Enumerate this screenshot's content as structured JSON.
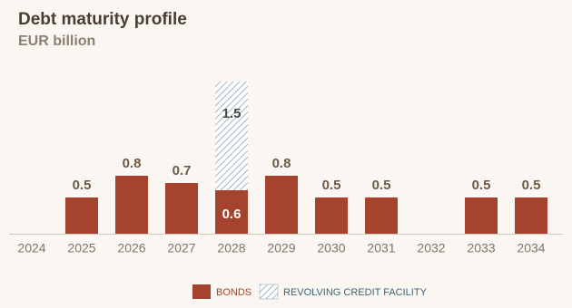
{
  "chart_data": {
    "type": "bar",
    "stacked": true,
    "title": "Debt maturity profile",
    "subtitle": "EUR billion",
    "categories": [
      "2024",
      "2025",
      "2026",
      "2027",
      "2028",
      "2029",
      "2030",
      "2031",
      "2032",
      "2033",
      "2034"
    ],
    "series": [
      {
        "name": "BONDS",
        "color": "#a5432f",
        "values": [
          null,
          0.5,
          0.8,
          0.7,
          0.6,
          0.8,
          0.5,
          0.5,
          null,
          0.5,
          0.5
        ]
      },
      {
        "name": "REVOLVING CREDIT FACILITY",
        "color": "#8aa5ae",
        "pattern": "hatch",
        "values": [
          null,
          null,
          null,
          null,
          1.5,
          null,
          null,
          null,
          null,
          null,
          null
        ]
      }
    ]
  }
}
